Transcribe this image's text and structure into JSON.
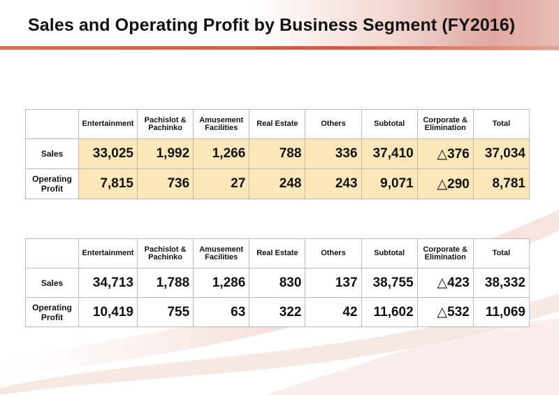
{
  "title": "Sales and Operating Profit by Business Segment (FY2016)",
  "colors": {
    "highlight": "#fce7b8",
    "accent": "#d4573f",
    "border": "#b9b9b9"
  },
  "columns": [
    "Entertainment",
    "Pachislot &\nPachinko",
    "Amusement\nFacilities",
    "Real Estate",
    "Others",
    "Subtotal",
    "Corporate &\nElimination",
    "Total"
  ],
  "table1": {
    "rows": [
      {
        "label": "Sales",
        "values": [
          "33,025",
          "1,992",
          "1,266",
          "788",
          "336",
          "37,410",
          "△376",
          "37,034"
        ]
      },
      {
        "label": "Operating\nProfit",
        "values": [
          "7,815",
          "736",
          "27",
          "248",
          "243",
          "9,071",
          "△290",
          "8,781"
        ]
      }
    ]
  },
  "table2": {
    "rows": [
      {
        "label": "Sales",
        "values": [
          "34,713",
          "1,788",
          "1,286",
          "830",
          "137",
          "38,755",
          "△423",
          "38,332"
        ]
      },
      {
        "label": "Operating\nProfit",
        "values": [
          "10,419",
          "755",
          "63",
          "322",
          "42",
          "11,602",
          "△532",
          "11,069"
        ]
      }
    ]
  }
}
